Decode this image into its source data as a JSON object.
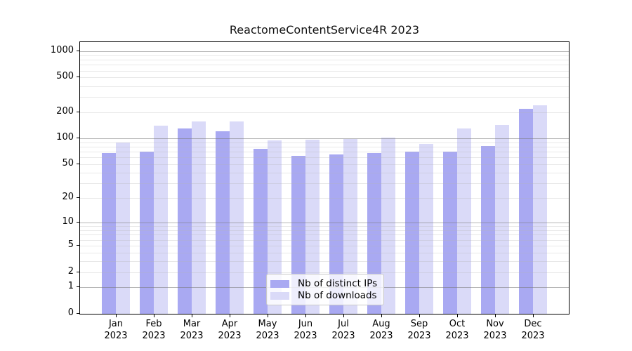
{
  "title": "ReactomeContentService4R 2023",
  "chart_data": {
    "type": "bar",
    "title": "ReactomeContentService4R 2023",
    "categories": [
      "Jan 2023",
      "Feb 2023",
      "Mar 2023",
      "Apr 2023",
      "May 2023",
      "Jun 2023",
      "Jul 2023",
      "Aug 2023",
      "Sep 2023",
      "Oct 2023",
      "Nov 2023",
      "Dec 2023"
    ],
    "series": [
      {
        "name": "Nb of distinct IPs",
        "color": "#a9a9f2",
        "values": [
          68,
          70,
          130,
          120,
          76,
          63,
          65,
          68,
          70,
          70,
          82,
          218
        ]
      },
      {
        "name": "Nb of downloads",
        "color": "#dadaf8",
        "values": [
          90,
          140,
          158,
          158,
          94,
          97,
          99,
          102,
          87,
          131,
          143,
          240
        ]
      }
    ],
    "xlabel": "",
    "ylabel": "",
    "yscale": "log1p",
    "y_ticks": [
      0,
      1,
      2,
      5,
      10,
      20,
      50,
      100,
      200,
      500,
      1000
    ],
    "ylim": [
      0,
      1300
    ],
    "grid": "horizontal",
    "legend_position": "lower center"
  },
  "colors": {
    "distinct_ips": "#a9a9f2",
    "downloads": "#dadaf8",
    "major_grid": "#787878",
    "minor_grid": "#b4b4b4",
    "axis": "#000000",
    "legend_border": "#c9c9c9"
  }
}
